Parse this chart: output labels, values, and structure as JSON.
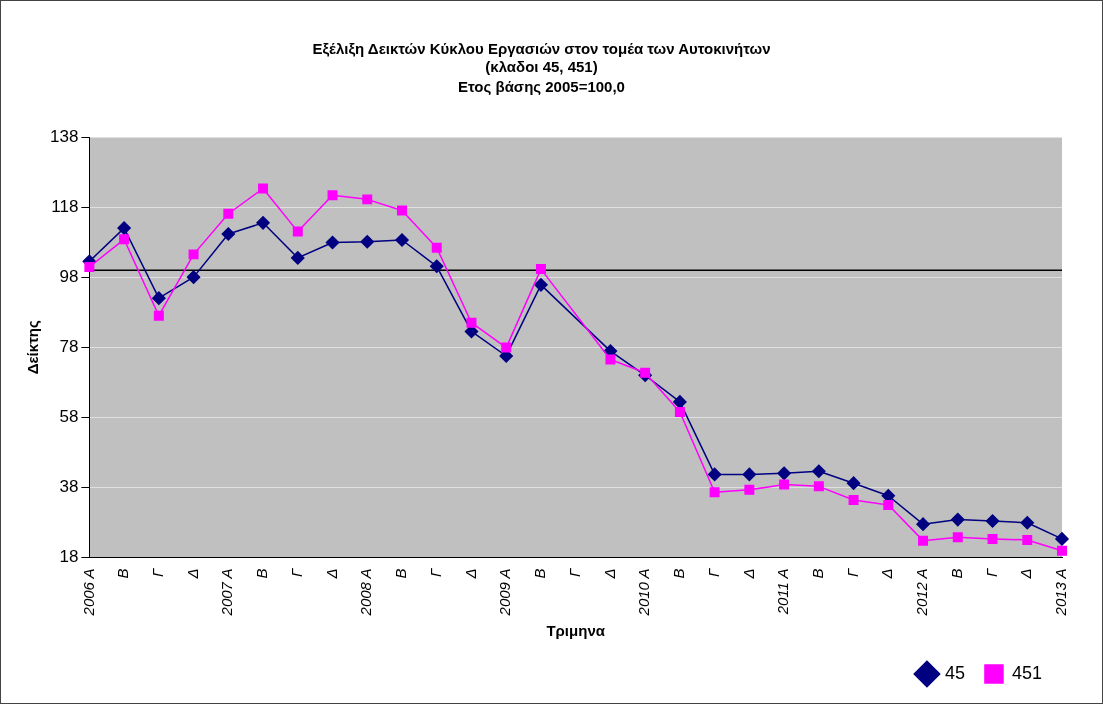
{
  "chart_data": {
    "type": "line",
    "title": "Εξέλιξη Δεικτών Κύκλου Εργασιών στον τομέα των Αυτοκινήτων\n(κλαδοι 45, 451)",
    "subtitle": "Ετος βάσης 2005=100,0",
    "xlabel": "Τριμηνα",
    "ylabel": "Δείκτης",
    "categories": [
      "2006 Α",
      "Β",
      "Γ",
      "Δ",
      "2007 Α",
      "Β",
      "Γ",
      "Δ",
      "2008 Α",
      "Β",
      "Γ",
      "Δ",
      "2009 Α",
      "Β",
      "Γ",
      "Δ",
      "2010 Α",
      "Β",
      "Γ",
      "Δ",
      "2011 Α",
      "Β",
      "Γ",
      "Δ",
      "2012 Α",
      "Β",
      "Γ",
      "Δ",
      "2013 Α"
    ],
    "series": [
      {
        "name": "45",
        "color": "#000080",
        "marker": "diamond",
        "values": [
          102.5,
          112,
          92,
          98,
          110.3,
          113.5,
          103.5,
          107.9,
          108.1,
          108.6,
          101.1,
          82.5,
          75.5,
          95.8,
          null,
          76.9,
          70,
          62.4,
          41.7,
          41.7,
          42,
          42.6,
          39.2,
          35.6,
          27.5,
          28.8,
          28.4,
          27.9,
          23.3
        ]
      },
      {
        "name": "451",
        "color": "#ff00ff",
        "marker": "square",
        "values": [
          100.9,
          108.8,
          87,
          104.5,
          116.1,
          123.3,
          111,
          121.4,
          120.2,
          117,
          106.4,
          85,
          77.9,
          100.3,
          null,
          74.5,
          70.7,
          59.5,
          36.6,
          37.3,
          38.8,
          38.3,
          34.4,
          33,
          22.8,
          23.8,
          23.3,
          23,
          19.9
        ]
      }
    ],
    "ylim": [
      18,
      138
    ],
    "yticks": [
      18,
      38,
      58,
      78,
      98,
      118,
      138
    ],
    "ref_lines": [
      {
        "axis": "y",
        "value": 100,
        "color": "#000000"
      }
    ],
    "grid": "y",
    "legend": "bottom right",
    "line_style": "solid"
  }
}
